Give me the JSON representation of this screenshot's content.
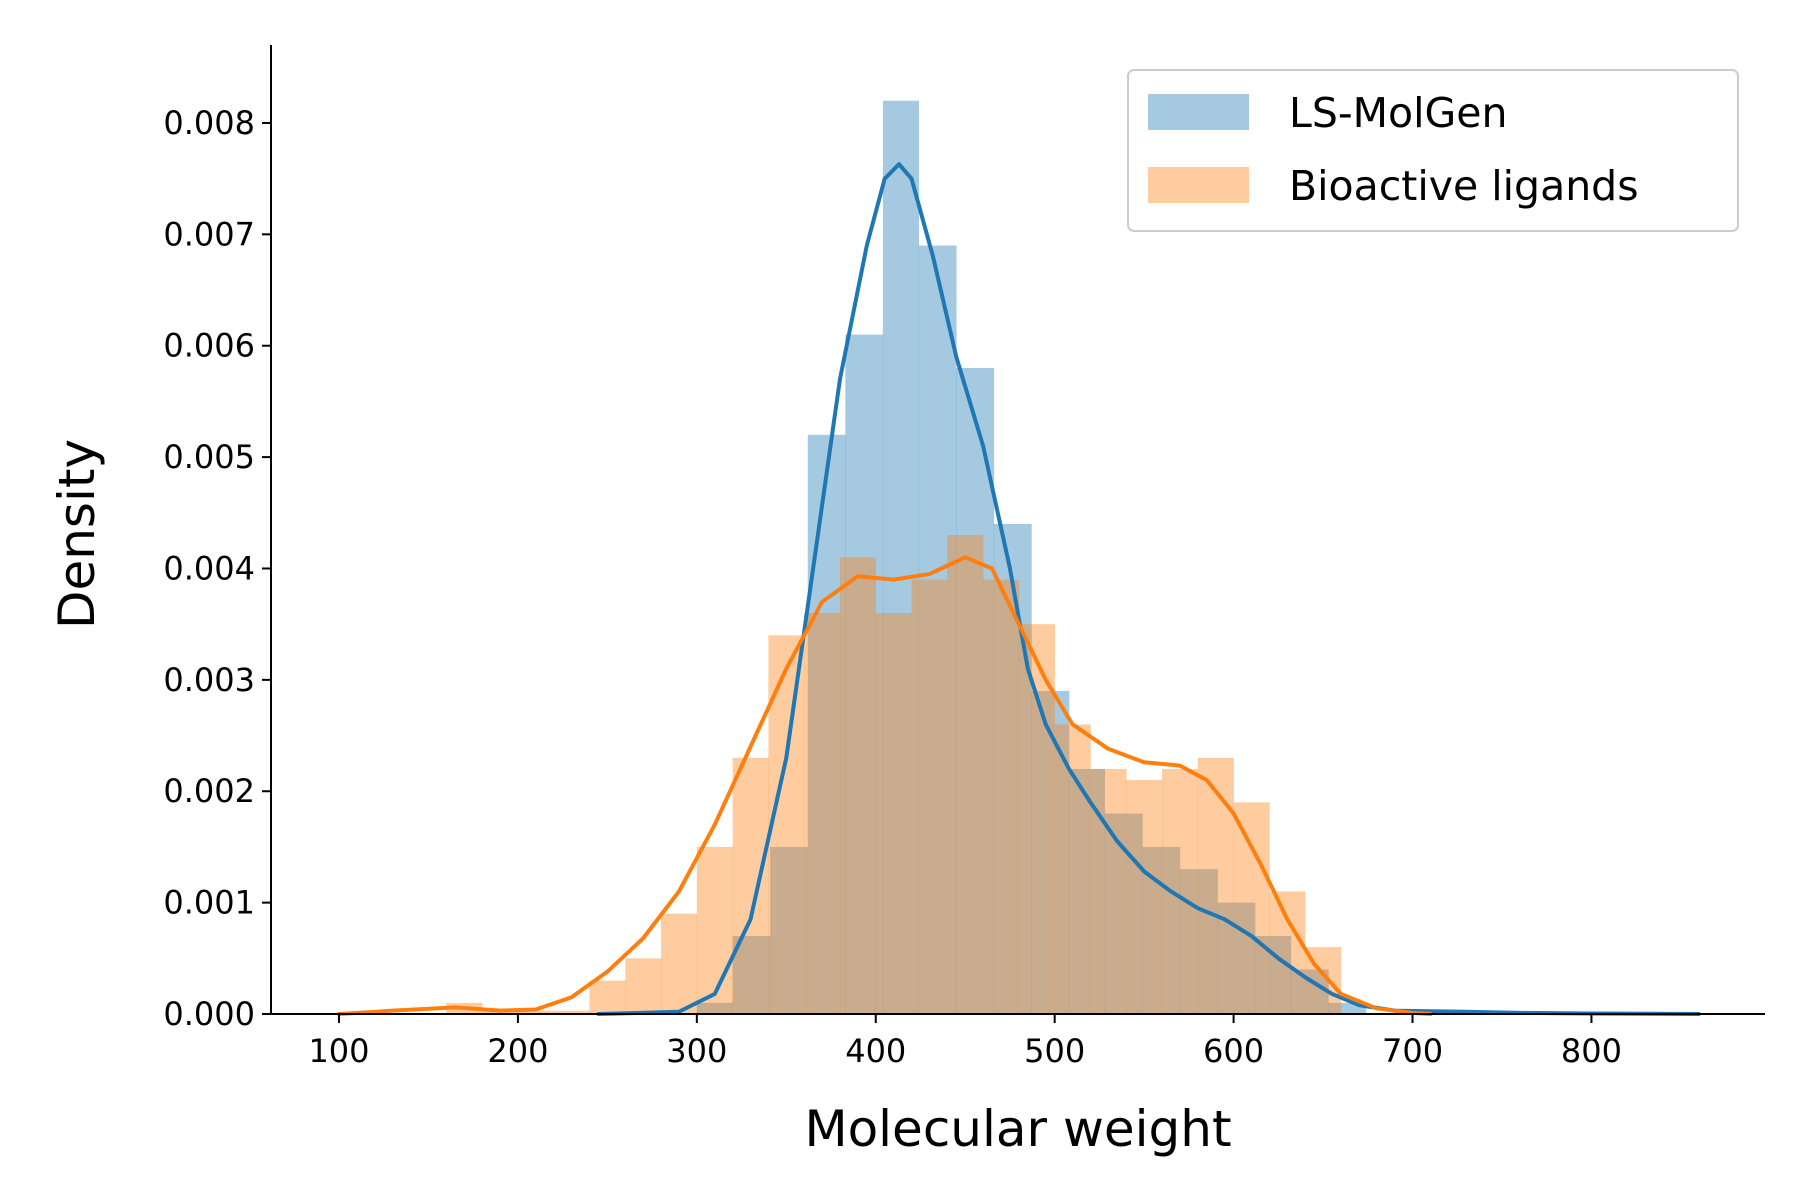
{
  "chart_data": {
    "type": "histogram-kde",
    "xlabel": "Molecular weight",
    "ylabel": "Density",
    "xlim": [
      62,
      897
    ],
    "ylim": [
      0,
      0.0087
    ],
    "xticks": [
      100,
      200,
      300,
      400,
      500,
      600,
      700,
      800
    ],
    "yticks": [
      0.0,
      0.001,
      0.002,
      0.003,
      0.004,
      0.005,
      0.006,
      0.007,
      0.008
    ],
    "ytick_labels": [
      "0.000",
      "0.001",
      "0.002",
      "0.003",
      "0.004",
      "0.005",
      "0.006",
      "0.007",
      "0.008"
    ],
    "grid": false,
    "legend_position": "top-right",
    "series": [
      {
        "name": "LS-MolGen",
        "color": "#1f77b4",
        "hist_alpha": 0.4,
        "bins": [
          [
            300,
            320,
            0.0001
          ],
          [
            320,
            341,
            0.0007
          ],
          [
            341,
            362,
            0.0015
          ],
          [
            362,
            383,
            0.0052
          ],
          [
            383,
            404,
            0.0061
          ],
          [
            404,
            424,
            0.0082
          ],
          [
            424,
            445,
            0.0069
          ],
          [
            445,
            466,
            0.0058
          ],
          [
            466,
            487,
            0.0044
          ],
          [
            487,
            508,
            0.0029
          ],
          [
            508,
            528,
            0.0022
          ],
          [
            528,
            549,
            0.0018
          ],
          [
            549,
            570,
            0.0015
          ],
          [
            570,
            591,
            0.0013
          ],
          [
            591,
            612,
            0.001
          ],
          [
            612,
            632,
            0.0007
          ],
          [
            632,
            653,
            0.0004
          ],
          [
            653,
            674,
            0.0001
          ]
        ],
        "kde": [
          [
            245,
            0.0
          ],
          [
            290,
            2e-05
          ],
          [
            310,
            0.00018
          ],
          [
            330,
            0.00085
          ],
          [
            350,
            0.0023
          ],
          [
            365,
            0.004
          ],
          [
            380,
            0.0057
          ],
          [
            395,
            0.0069
          ],
          [
            405,
            0.0075
          ],
          [
            413,
            0.00763
          ],
          [
            420,
            0.0075
          ],
          [
            432,
            0.0068
          ],
          [
            445,
            0.0059
          ],
          [
            460,
            0.0051
          ],
          [
            475,
            0.004
          ],
          [
            485,
            0.0031
          ],
          [
            495,
            0.0026
          ],
          [
            508,
            0.0022
          ],
          [
            520,
            0.0019
          ],
          [
            535,
            0.00155
          ],
          [
            550,
            0.00128
          ],
          [
            565,
            0.0011
          ],
          [
            580,
            0.00095
          ],
          [
            595,
            0.00085
          ],
          [
            610,
            0.0007
          ],
          [
            625,
            0.0005
          ],
          [
            640,
            0.00033
          ],
          [
            655,
            0.00018
          ],
          [
            670,
            8e-05
          ],
          [
            690,
            3e-05
          ],
          [
            730,
            2e-05
          ],
          [
            760,
            1e-05
          ],
          [
            800,
            5e-06
          ],
          [
            860,
            0.0
          ]
        ]
      },
      {
        "name": "Bioactive ligands",
        "color": "#ff7f0e",
        "hist_alpha": 0.4,
        "bins": [
          [
            160,
            180,
            0.0001
          ],
          [
            180,
            200,
            3e-05
          ],
          [
            200,
            240,
            3e-05
          ],
          [
            240,
            260,
            0.0003
          ],
          [
            260,
            280,
            0.0005
          ],
          [
            280,
            300,
            0.0009
          ],
          [
            300,
            320,
            0.0015
          ],
          [
            320,
            340,
            0.0023
          ],
          [
            340,
            360,
            0.0034
          ],
          [
            360,
            380,
            0.0036
          ],
          [
            380,
            400,
            0.0041
          ],
          [
            400,
            420,
            0.0036
          ],
          [
            420,
            440,
            0.0039
          ],
          [
            440,
            460,
            0.0043
          ],
          [
            460,
            480,
            0.0039
          ],
          [
            480,
            500,
            0.0035
          ],
          [
            500,
            520,
            0.0026
          ],
          [
            520,
            540,
            0.0022
          ],
          [
            540,
            560,
            0.0021
          ],
          [
            560,
            580,
            0.0022
          ],
          [
            580,
            600,
            0.0023
          ],
          [
            600,
            620,
            0.0019
          ],
          [
            620,
            640,
            0.0011
          ],
          [
            640,
            660,
            0.0006
          ]
        ],
        "kde": [
          [
            100,
            0.0
          ],
          [
            130,
            3e-05
          ],
          [
            165,
            6e-05
          ],
          [
            190,
            3e-05
          ],
          [
            210,
            4e-05
          ],
          [
            230,
            0.00015
          ],
          [
            250,
            0.00038
          ],
          [
            270,
            0.00068
          ],
          [
            290,
            0.0011
          ],
          [
            310,
            0.0017
          ],
          [
            330,
            0.0024
          ],
          [
            350,
            0.0031
          ],
          [
            370,
            0.0037
          ],
          [
            390,
            0.00393
          ],
          [
            410,
            0.0039
          ],
          [
            430,
            0.00395
          ],
          [
            450,
            0.0041
          ],
          [
            465,
            0.004
          ],
          [
            480,
            0.0035
          ],
          [
            495,
            0.003
          ],
          [
            510,
            0.0026
          ],
          [
            530,
            0.00238
          ],
          [
            550,
            0.00226
          ],
          [
            570,
            0.00223
          ],
          [
            585,
            0.0021
          ],
          [
            600,
            0.0018
          ],
          [
            615,
            0.00135
          ],
          [
            630,
            0.00085
          ],
          [
            645,
            0.00045
          ],
          [
            660,
            0.00018
          ],
          [
            680,
            5e-05
          ],
          [
            700,
            1e-05
          ],
          [
            710,
            0.0
          ]
        ]
      }
    ]
  }
}
